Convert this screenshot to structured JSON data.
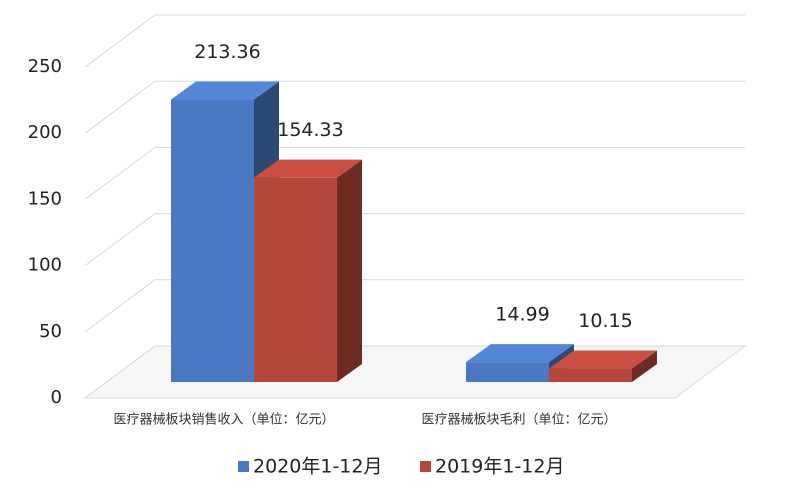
{
  "chart_data": {
    "type": "bar3d",
    "categories": [
      "医疗器械板块销售收入（单位：亿元）",
      "医疗器械板块毛利（单位：亿元）"
    ],
    "series": [
      {
        "name": "2020年1-12月",
        "color": "#4a78c2",
        "values": [
          213.36,
          14.99
        ]
      },
      {
        "name": "2019年1-12月",
        "color": "#b5473a",
        "values": [
          154.33,
          10.15
        ]
      }
    ],
    "ylim": [
      0,
      250
    ],
    "yticks": [
      0,
      50,
      100,
      150,
      200,
      250
    ],
    "grid": true
  }
}
